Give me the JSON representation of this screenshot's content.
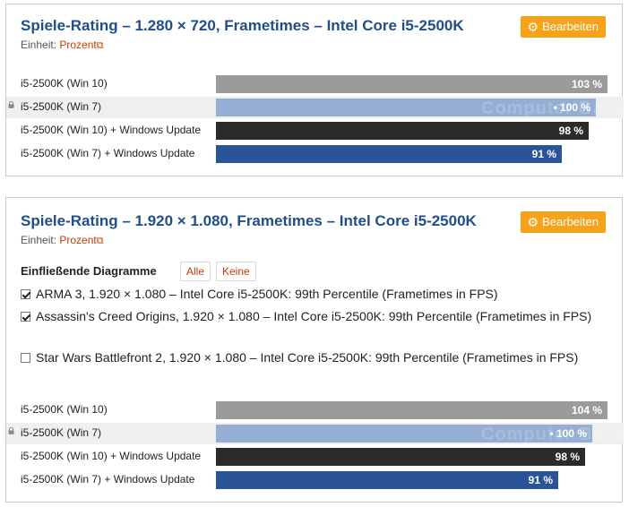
{
  "colors": {
    "title": "#1f4f86",
    "accent": "#f7a21b",
    "link": "#c63b00",
    "bar_win10": "#9b9b9b",
    "bar_win7": "#95aed4",
    "bar_win10_upd": "#2b2b2b",
    "bar_win7_upd": "#2a5497"
  },
  "panel1": {
    "title": "Spiele-Rating – 1.280 × 720, Frametimes – Intel Core i5-2500K",
    "edit_label": "Bearbeiten",
    "unit_label": "Einheit:",
    "unit_value": "Prozent",
    "watermark": "Computer Base"
  },
  "panel2": {
    "title": "Spiele-Rating – 1.920 × 1.080, Frametimes – Intel Core i5-2500K",
    "edit_label": "Bearbeiten",
    "unit_label": "Einheit:",
    "unit_value": "Prozent",
    "diagrams_heading": "Einfließende Diagramme",
    "btn_all": "Alle",
    "btn_none": "Keine",
    "diagrams": [
      {
        "label": "ARMA 3, 1.920 × 1.080 – Intel Core i5-2500K: 99th Percentile (Frametimes in FPS)",
        "checked": true
      },
      {
        "label": "Assassin's Creed Origins, 1.920 × 1.080 – Intel Core i5-2500K: 99th Percentile (Frametimes in FPS)",
        "checked": true
      },
      {
        "label": "Star Wars Battlefront 2, 1.920 × 1.080 – Intel Core i5-2500K: 99th Percentile (Frametimes in FPS)",
        "checked": false
      }
    ],
    "watermark": "Computer Base"
  },
  "chart_data": [
    {
      "type": "bar",
      "orientation": "horizontal",
      "title": "Spiele-Rating – 1.280 × 720, Frametimes – Intel Core i5-2500K",
      "unit": "Prozent",
      "categories": [
        "i5-2500K (Win 10)",
        "i5-2500K (Win 7)",
        "i5-2500K (Win 10) + Windows Update",
        "i5-2500K (Win 7) + Windows Update"
      ],
      "values": [
        103,
        100,
        98,
        91
      ],
      "value_labels": [
        "103 %",
        "100 %",
        "98 %",
        "91 %"
      ],
      "reference_index": 1,
      "xlim": [
        0,
        103
      ]
    },
    {
      "type": "bar",
      "orientation": "horizontal",
      "title": "Spiele-Rating – 1.920 × 1.080, Frametimes – Intel Core i5-2500K",
      "unit": "Prozent",
      "categories": [
        "i5-2500K (Win 10)",
        "i5-2500K (Win 7)",
        "i5-2500K (Win 10) + Windows Update",
        "i5-2500K (Win 7) + Windows Update"
      ],
      "values": [
        104,
        100,
        98,
        91
      ],
      "value_labels": [
        "104 %",
        "100 %",
        "98 %",
        "91 %"
      ],
      "reference_index": 1,
      "xlim": [
        0,
        104
      ]
    }
  ]
}
